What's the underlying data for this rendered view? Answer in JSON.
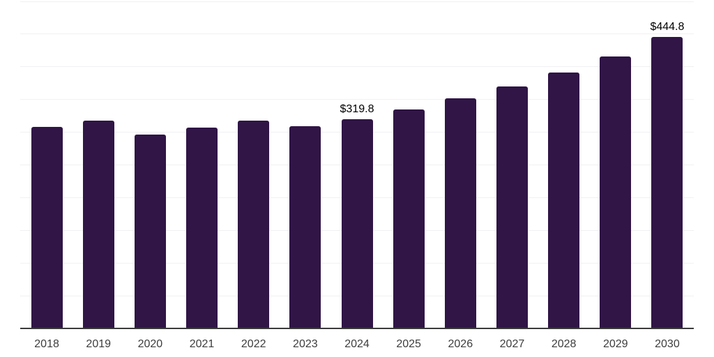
{
  "chart_data": {
    "type": "bar",
    "title": "",
    "xlabel": "",
    "ylabel": "",
    "categories": [
      "2018",
      "2019",
      "2020",
      "2021",
      "2022",
      "2023",
      "2024",
      "2025",
      "2026",
      "2027",
      "2028",
      "2029",
      "2030"
    ],
    "values": [
      307.5,
      317.0,
      296.5,
      306.5,
      317.0,
      308.5,
      319.8,
      334.0,
      351.0,
      370.0,
      391.0,
      415.5,
      444.8
    ],
    "point_labels": [
      "",
      "",
      "",
      "",
      "",
      "",
      "$319.8",
      "",
      "",
      "",
      "",
      "",
      "$444.8"
    ],
    "ylim": [
      0,
      500
    ],
    "grid_step": 50,
    "grid": "horizontal-only, no y-axis tick labels",
    "legend": "none",
    "colors": {
      "bar": "#301546",
      "gridline": "#f1f1f4",
      "axis_line": "#3a3a3a",
      "value_label": "#000000",
      "tick_label": "#3d3d3d",
      "background": "#ffffff"
    }
  }
}
